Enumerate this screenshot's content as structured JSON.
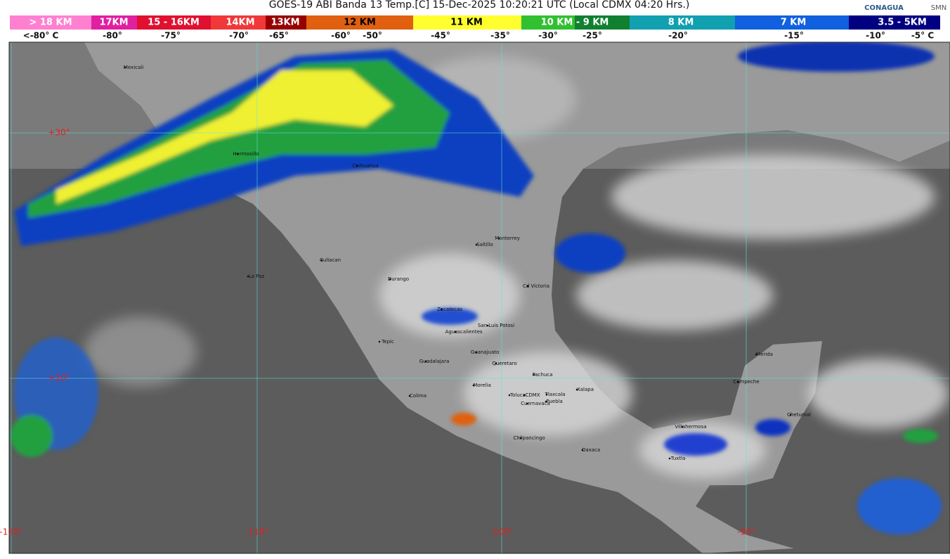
{
  "header": {
    "title": "GOES-19 ABI Banda 13 Temp.[C] 15-Dec-2025 10:20:21 UTC (Local CDMX  04:20 Hrs.)",
    "logos": [
      "CONAGUA",
      "SMN"
    ]
  },
  "legend": {
    "heights": [
      "> 18 KM",
      "17KM",
      "15 - 16KM",
      "14KM",
      "13KM",
      "12 KM",
      "11 KM",
      "10 KM -  9 KM",
      "8 KM",
      "7 KM",
      "3.5 - 5KM"
    ],
    "temperatures": [
      "<-80° C",
      "-80°",
      "-75°",
      "-70°",
      "-65°",
      "-60°",
      "-50°",
      "-45°",
      "-35°",
      "-30°",
      "-25°",
      "-20°",
      "-15°",
      "-10°",
      "-5° C"
    ]
  },
  "map": {
    "latitudes": [
      "+30°",
      "+20°"
    ],
    "longitudes": [
      "-120°",
      "-110°",
      "-100°",
      "-90°"
    ],
    "cities": [
      "Mexicali",
      "Hermosillo",
      "Chihuahua",
      "La Paz",
      "Culiacan",
      "Durango",
      "Monterrey",
      "Saltillo",
      "Cd Victoria",
      "Zacatecas",
      "San Luis Potosi",
      "Aguascalientes",
      "Tepic",
      "Guanajuato",
      "Guadalajara",
      "Queretaro",
      "Pachuca",
      "Morelia",
      "Colima",
      "Toluca",
      "CDMX",
      "Tlaxcala",
      "Puebla",
      "Cuernavaca",
      "Xalapa",
      "Chilpancingo",
      "Oaxaca",
      "Villahermosa",
      "Tuxtla",
      "Campeche",
      "Merida",
      "Chetumal"
    ]
  }
}
